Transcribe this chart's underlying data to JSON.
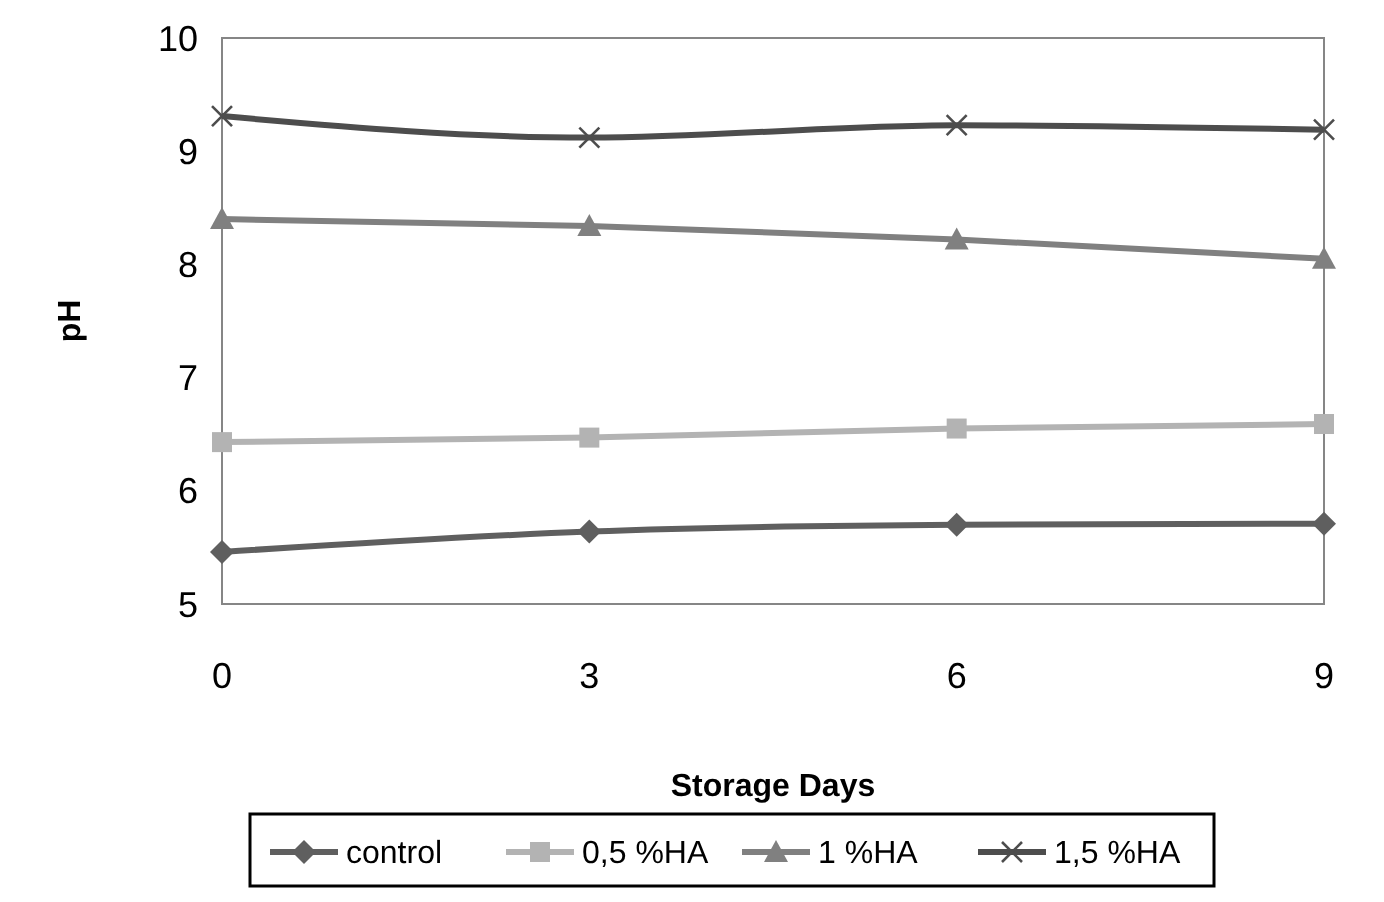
{
  "chart_data": {
    "type": "line",
    "xlabel": "Storage Days",
    "ylabel": "pH",
    "x": [
      0,
      3,
      6,
      9
    ],
    "xlim": [
      0,
      9
    ],
    "xticks": [
      0,
      3,
      6,
      9
    ],
    "ylim": [
      5,
      10
    ],
    "yticks": [
      5,
      6,
      7,
      8,
      9,
      10
    ],
    "grid": false,
    "legend": "bottom",
    "series": [
      {
        "name": "control",
        "color": "#5f5f5f",
        "marker": "diamond",
        "values": [
          5.46,
          5.64,
          5.7,
          5.71
        ]
      },
      {
        "name": "0,5 %HA",
        "color": "#b3b3b3",
        "marker": "square",
        "values": [
          6.43,
          6.47,
          6.55,
          6.59
        ]
      },
      {
        "name": "1 %HA",
        "color": "#808080",
        "marker": "triangle",
        "values": [
          8.4,
          8.34,
          8.22,
          8.05
        ]
      },
      {
        "name": "1,5 %HA",
        "color": "#4d4d4d",
        "marker": "cross",
        "values": [
          9.31,
          9.12,
          9.23,
          9.19
        ]
      }
    ]
  }
}
